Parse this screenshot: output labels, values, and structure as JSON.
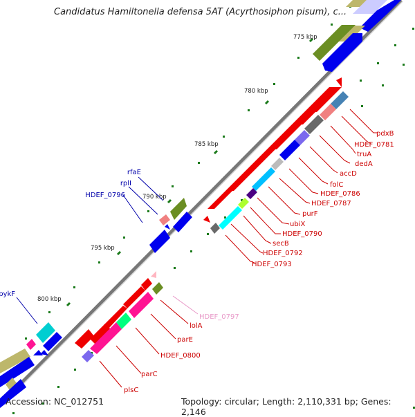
{
  "title": "Candidatus Hamiltonella defensa 5AT (Acyrthosiphon pisum), c...",
  "footer": {
    "accession": "Accession: NC_012751",
    "topology": "Topology: circular; Length: 2,110,331 bp; Genes: 2,146"
  },
  "ticks": [
    "775 kbp",
    "780 kbp",
    "785 kbp",
    "790 kbp",
    "795 kbp",
    "800 kbp"
  ],
  "genes_minus": [
    "pdxB",
    "HDEF_0781",
    "truA",
    "dedA",
    "accD",
    "folC",
    "HDEF_0786",
    "HDEF_0787",
    "purF",
    "ubiX",
    "HDEF_0790",
    "secB",
    "HDEF_0792",
    "HDEF_0793",
    "HDEF_0797",
    "lolA",
    "parE",
    "HDEF_0800",
    "parC",
    "plsC"
  ],
  "genes_plus": [
    "rfaE",
    "rplI",
    "HDEF_0796",
    "pykF"
  ],
  "colors": {
    "minus_label": "#cc0000",
    "plus_label": "#0000aa",
    "faded_label": "#e899c8",
    "red": "#ee0000",
    "blue": "#0000ee",
    "olive": "#6b8e23",
    "khaki": "#bdb76b",
    "cyan": "#00ffff",
    "magenta": "#ff1493",
    "slate": "#7b68ee",
    "backbone": "#808080"
  }
}
